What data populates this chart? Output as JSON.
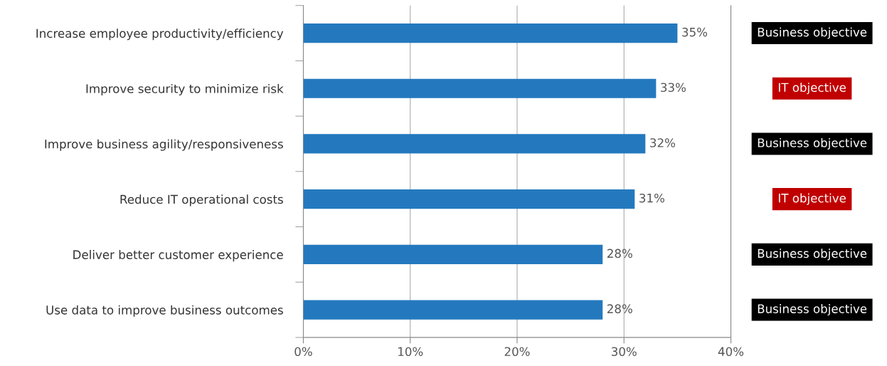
{
  "chart_data": {
    "type": "bar",
    "orientation": "horizontal",
    "categories": [
      "Increase employee productivity/efficiency",
      "Improve security to minimize risk",
      "Improve business agility/responsiveness",
      "Reduce IT operational costs",
      "Deliver better customer experience",
      "Use data to improve business outcomes"
    ],
    "values": [
      35,
      33,
      32,
      31,
      28,
      28
    ],
    "value_labels": [
      "35%",
      "33%",
      "32%",
      "31%",
      "28%",
      "28%"
    ],
    "color": "#2479be",
    "xlim": [
      0,
      40
    ],
    "xticks": [
      {
        "value": 0,
        "label": "0%"
      },
      {
        "value": 10,
        "label": "10%"
      },
      {
        "value": 20,
        "label": "20%"
      },
      {
        "value": 30,
        "label": "30%"
      },
      {
        "value": 40,
        "label": "40%"
      }
    ],
    "grid": "x",
    "legend": false,
    "annotations": [
      "Business objective",
      "IT objective",
      "Business objective",
      "IT objective",
      "Business objective",
      "Business objective"
    ]
  }
}
